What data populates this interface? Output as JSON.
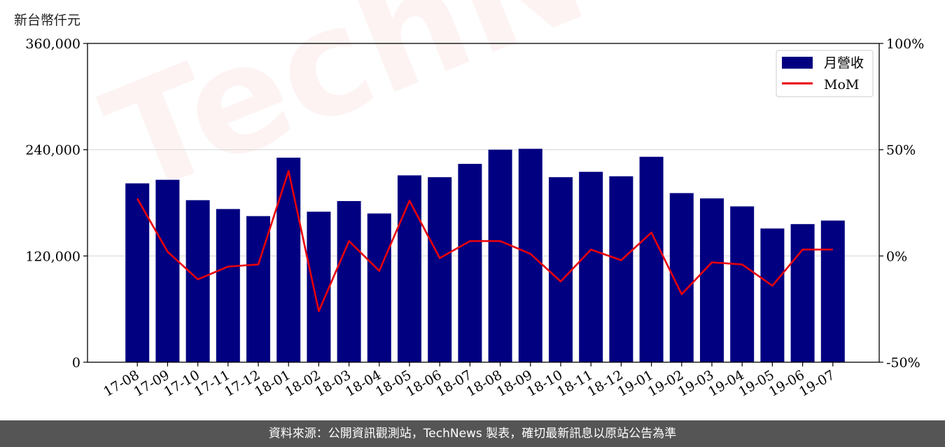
{
  "unit_label": "新台幣仟元",
  "footer": "資料來源：公開資訊觀測站，TechNews 製表，確切最新訊息以原站公告為準",
  "watermark": "TechNews",
  "colors": {
    "bar": "#000080",
    "line": "#e8000b",
    "grid": "#d9d9d9"
  },
  "chart_data": {
    "type": "bar",
    "categories": [
      "17-08",
      "17-09",
      "17-10",
      "17-11",
      "17-12",
      "18-01",
      "18-02",
      "18-03",
      "18-04",
      "18-05",
      "18-06",
      "18-07",
      "18-08",
      "18-09",
      "18-10",
      "18-11",
      "18-12",
      "19-01",
      "19-02",
      "19-03",
      "19-04",
      "19-05",
      "19-06",
      "19-07"
    ],
    "series": [
      {
        "name": "月營收",
        "type": "bar",
        "axis": "left",
        "values": [
          202000,
          206000,
          183000,
          173000,
          165000,
          231000,
          170000,
          182000,
          168000,
          211000,
          209000,
          224000,
          240000,
          241000,
          209000,
          215000,
          210000,
          232000,
          191000,
          185000,
          176000,
          151000,
          156000,
          160000
        ]
      },
      {
        "name": "MoM",
        "type": "line",
        "axis": "right",
        "unit": "%",
        "values": [
          27,
          2,
          -11,
          -5,
          -4,
          40,
          -26,
          7,
          -7,
          26,
          -1,
          7,
          7,
          1,
          -12,
          3,
          -2,
          11,
          -18,
          -3,
          -4,
          -14,
          3,
          3
        ]
      }
    ],
    "y_left": {
      "lim": [
        0,
        360000
      ],
      "ticks": [
        "0",
        "120,000",
        "240,000",
        "360,000"
      ]
    },
    "y_right": {
      "lim": [
        -50,
        100
      ],
      "ticks": [
        "-50%",
        "0%",
        "50%",
        "100%"
      ]
    },
    "grid": "horizontal",
    "legend_position": "top-right"
  }
}
